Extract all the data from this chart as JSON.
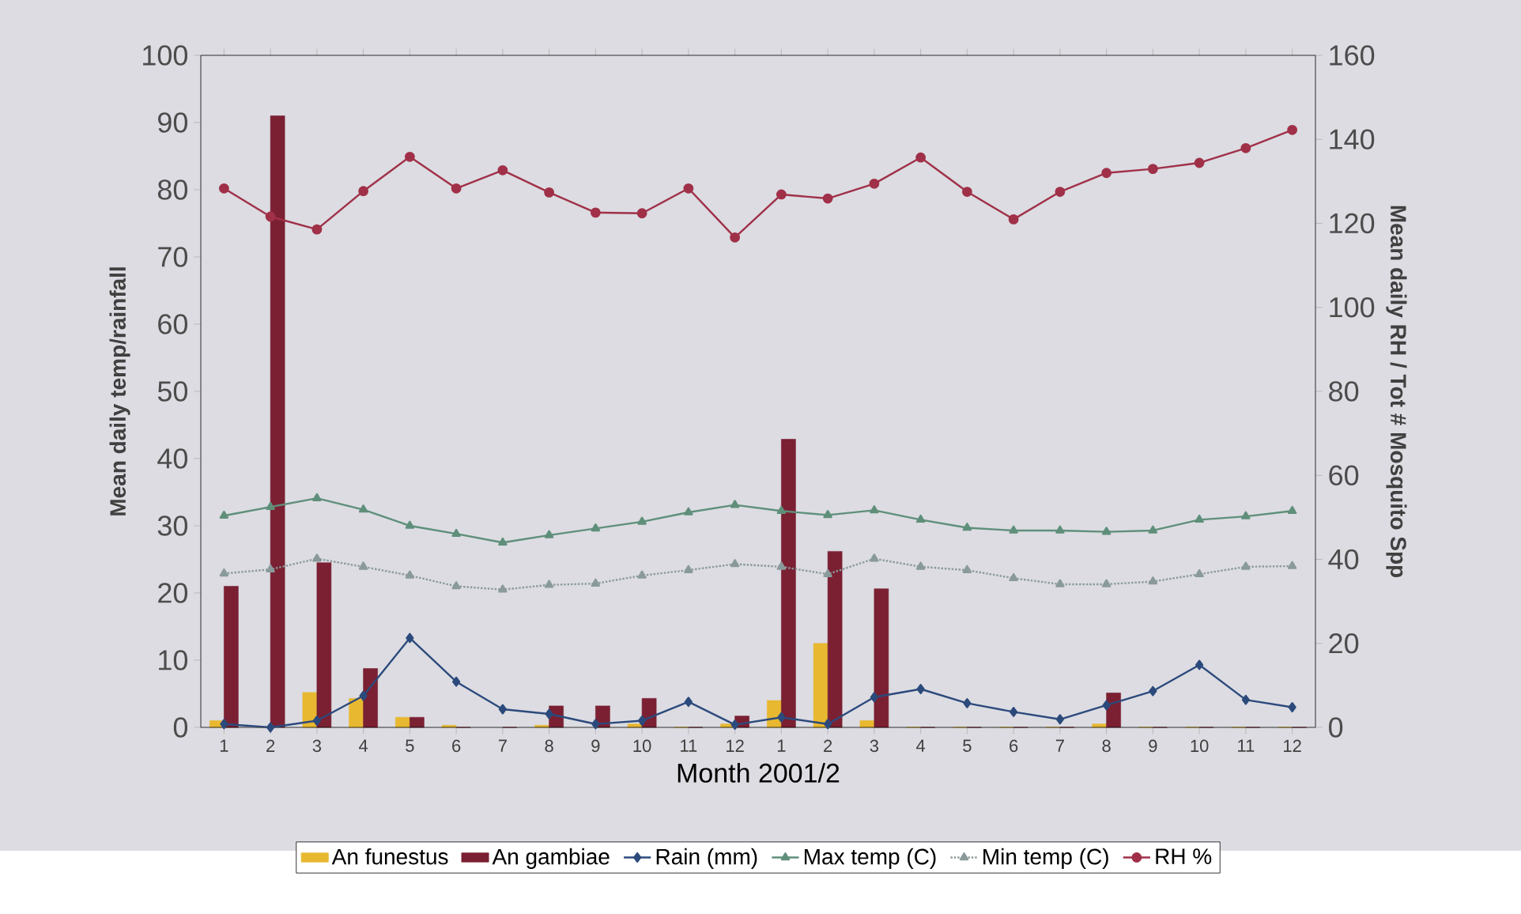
{
  "chart_data": {
    "type": "bar",
    "xlabel": "Month 2001/2",
    "ylabel": "Mean daily temp/rainfall",
    "y2label": "Mean daily RH / Tot # Mosquito Spp",
    "categories": [
      "1",
      "2",
      "3",
      "4",
      "5",
      "6",
      "7",
      "8",
      "9",
      "10",
      "11",
      "12",
      "1",
      "2",
      "3",
      "4",
      "5",
      "6",
      "7",
      "8",
      "9",
      "10",
      "11",
      "12"
    ],
    "ylim": [
      0,
      100
    ],
    "yticks": [
      0,
      10,
      20,
      30,
      40,
      50,
      60,
      70,
      80,
      90,
      100
    ],
    "y2lim": [
      0,
      160
    ],
    "y2ticks": [
      0,
      20,
      40,
      60,
      80,
      100,
      120,
      140,
      160
    ],
    "grid": false,
    "legend": "bottom",
    "series": [
      {
        "name": "An funestus",
        "axis": "y2",
        "color": "#e8b830",
        "values": [
          1.6,
          0,
          8.3,
          6.9,
          2.4,
          0.5,
          null,
          0.5,
          null,
          0.8,
          0,
          0.8,
          6.4,
          20,
          1.6,
          0,
          0,
          0,
          0,
          0.8,
          0,
          0,
          0,
          0
        ]
      },
      {
        "name": "An gambiae",
        "axis": "y2",
        "color": "#7a2032",
        "values": [
          33.6,
          145.6,
          39.2,
          14,
          2.4,
          0,
          0,
          5.1,
          5.1,
          6.9,
          0,
          2.7,
          68.6,
          41.9,
          33,
          0,
          0,
          0,
          0,
          8.2,
          0,
          0,
          0,
          0
        ]
      },
      {
        "name": "Rain (mm)",
        "type": "line",
        "color": "#2c4a7c",
        "marker": "diamond",
        "line_style": "solid",
        "values": [
          0.5,
          0,
          1,
          4.7,
          13.3,
          6.8,
          2.7,
          2.0,
          0.5,
          1,
          3.8,
          0.4,
          1.5,
          0.5,
          4.5,
          5.7,
          3.6,
          2.3,
          1.2,
          3.3,
          5.4,
          9.3,
          4.1,
          3.0
        ]
      },
      {
        "name": "Max temp (C)",
        "type": "line",
        "color": "#5f8f7a",
        "marker": "triangle",
        "line_style": "solid",
        "values": [
          31.5,
          32.8,
          34.1,
          32.4,
          30.0,
          28.8,
          27.5,
          28.6,
          29.6,
          30.6,
          32.0,
          33.1,
          32.2,
          31.6,
          32.3,
          30.9,
          29.7,
          29.3,
          29.3,
          29.1,
          29.3,
          30.9,
          31.4,
          32.2
        ]
      },
      {
        "name": "Min temp (C)",
        "type": "line",
        "color": "#8a9a9a",
        "marker": "triangle",
        "line_style": "dotted",
        "values": [
          22.9,
          23.5,
          25.1,
          23.9,
          22.6,
          21.0,
          20.5,
          21.2,
          21.4,
          22.6,
          23.4,
          24.3,
          23.9,
          22.8,
          25.1,
          23.9,
          23.4,
          22.2,
          21.3,
          21.3,
          21.7,
          22.8,
          23.9,
          24.0
        ]
      },
      {
        "name": "RH %",
        "type": "line",
        "color": "#a03048",
        "marker": "circle",
        "line_style": "solid",
        "values": [
          80.2,
          76,
          74.1,
          79.8,
          84.9,
          80.2,
          82.9,
          79.6,
          76.6,
          76.5,
          80.2,
          72.9,
          79.3,
          78.7,
          80.9,
          84.8,
          79.7,
          75.6,
          79.7,
          82.5,
          83.1,
          84.0,
          86.2,
          88.9
        ]
      }
    ]
  }
}
